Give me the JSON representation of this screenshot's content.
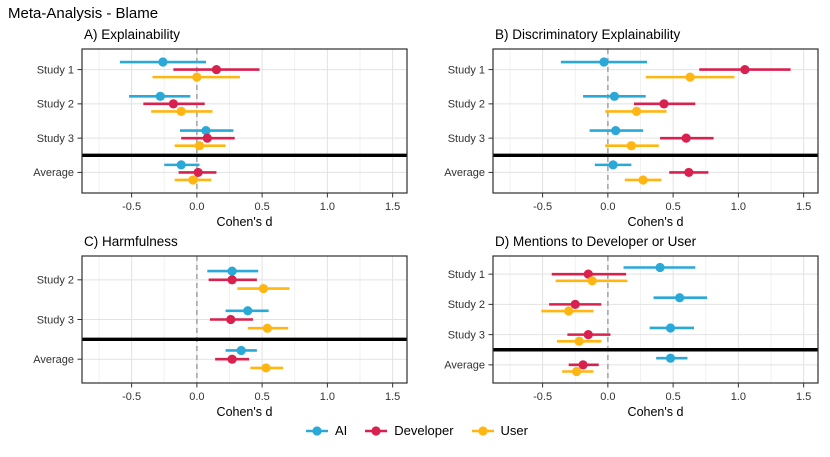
{
  "figure_title": "Meta-Analysis - Blame",
  "axis": {
    "xlabel": "Cohen's d",
    "xlim": [
      -0.88,
      1.61
    ],
    "xticks": [
      -0.5,
      0.0,
      0.5,
      1.0,
      1.5
    ],
    "xtick_labels": [
      "-0.5",
      "0.0",
      "0.5",
      "1.0",
      "1.5"
    ],
    "xminor": [
      -0.75,
      -0.25,
      0.25,
      0.75,
      1.25
    ],
    "zero_line": 0
  },
  "legend": {
    "position": "bottom",
    "items": [
      {
        "label": "AI",
        "color": "#2AA9D8"
      },
      {
        "label": "Developer",
        "color": "#D9214F"
      },
      {
        "label": "User",
        "color": "#FFB612"
      }
    ]
  },
  "style": {
    "grid_major": "#E2E2E2",
    "grid_minor": "#F1F1F1",
    "panel_border": "#2E2E2E",
    "zero_dash": "#ACACAC",
    "separator": "#000000",
    "text": "#333333"
  },
  "chart_data": [
    {
      "type": "pointrange",
      "title": "A) Explainability",
      "xlabel": "Cohen's d",
      "categories": [
        "Study 1",
        "Study 2",
        "Study 3",
        "Average"
      ],
      "separator_before": "Average",
      "series": [
        {
          "name": "AI",
          "color": "#2AA9D8",
          "points": [
            {
              "est": -0.26,
              "lo": -0.59,
              "hi": 0.07
            },
            {
              "est": -0.28,
              "lo": -0.52,
              "hi": -0.05
            },
            {
              "est": 0.07,
              "lo": -0.13,
              "hi": 0.28
            },
            {
              "est": -0.12,
              "lo": -0.25,
              "hi": 0.02
            }
          ]
        },
        {
          "name": "Developer",
          "color": "#D9214F",
          "points": [
            {
              "est": 0.15,
              "lo": -0.18,
              "hi": 0.48
            },
            {
              "est": -0.18,
              "lo": -0.41,
              "hi": 0.06
            },
            {
              "est": 0.08,
              "lo": -0.12,
              "hi": 0.29
            },
            {
              "est": 0.01,
              "lo": -0.14,
              "hi": 0.15
            }
          ]
        },
        {
          "name": "User",
          "color": "#FFB612",
          "points": [
            {
              "est": 0.0,
              "lo": -0.34,
              "hi": 0.33
            },
            {
              "est": -0.12,
              "lo": -0.35,
              "hi": 0.12
            },
            {
              "est": 0.02,
              "lo": -0.17,
              "hi": 0.22
            },
            {
              "est": -0.03,
              "lo": -0.17,
              "hi": 0.11
            }
          ]
        }
      ]
    },
    {
      "type": "pointrange",
      "title": "B) Discriminatory Explainability",
      "xlabel": "Cohen's d",
      "categories": [
        "Study 1",
        "Study 2",
        "Study 3",
        "Average"
      ],
      "separator_before": "Average",
      "series": [
        {
          "name": "AI",
          "color": "#2AA9D8",
          "points": [
            {
              "est": -0.03,
              "lo": -0.36,
              "hi": 0.3
            },
            {
              "est": 0.05,
              "lo": -0.19,
              "hi": 0.29
            },
            {
              "est": 0.06,
              "lo": -0.14,
              "hi": 0.27
            },
            {
              "est": 0.04,
              "lo": -0.1,
              "hi": 0.18
            }
          ]
        },
        {
          "name": "Developer",
          "color": "#D9214F",
          "points": [
            {
              "est": 1.05,
              "lo": 0.7,
              "hi": 1.4
            },
            {
              "est": 0.43,
              "lo": 0.2,
              "hi": 0.67
            },
            {
              "est": 0.6,
              "lo": 0.4,
              "hi": 0.81
            },
            {
              "est": 0.62,
              "lo": 0.47,
              "hi": 0.77
            }
          ]
        },
        {
          "name": "User",
          "color": "#FFB612",
          "points": [
            {
              "est": 0.63,
              "lo": 0.29,
              "hi": 0.97
            },
            {
              "est": 0.22,
              "lo": -0.02,
              "hi": 0.45
            },
            {
              "est": 0.18,
              "lo": -0.02,
              "hi": 0.39
            },
            {
              "est": 0.27,
              "lo": 0.13,
              "hi": 0.41
            }
          ]
        }
      ]
    },
    {
      "type": "pointrange",
      "title": "C) Harmfulness",
      "xlabel": "Cohen's d",
      "categories": [
        "Study 2",
        "Study 3",
        "Average"
      ],
      "separator_before": "Average",
      "series": [
        {
          "name": "AI",
          "color": "#2AA9D8",
          "points": [
            {
              "est": 0.27,
              "lo": 0.08,
              "hi": 0.47
            },
            {
              "est": 0.39,
              "lo": 0.22,
              "hi": 0.55
            },
            {
              "est": 0.34,
              "lo": 0.22,
              "hi": 0.46
            }
          ]
        },
        {
          "name": "Developer",
          "color": "#D9214F",
          "points": [
            {
              "est": 0.27,
              "lo": 0.09,
              "hi": 0.46
            },
            {
              "est": 0.26,
              "lo": 0.1,
              "hi": 0.43
            },
            {
              "est": 0.27,
              "lo": 0.14,
              "hi": 0.4
            }
          ]
        },
        {
          "name": "User",
          "color": "#FFB612",
          "points": [
            {
              "est": 0.51,
              "lo": 0.31,
              "hi": 0.71
            },
            {
              "est": 0.54,
              "lo": 0.39,
              "hi": 0.7
            },
            {
              "est": 0.53,
              "lo": 0.41,
              "hi": 0.66
            }
          ]
        }
      ]
    },
    {
      "type": "pointrange",
      "title": "D) Mentions to Developer or User",
      "xlabel": "Cohen's d",
      "categories": [
        "Study 1",
        "Study 2",
        "Study 3",
        "Average"
      ],
      "separator_before": "Average",
      "series": [
        {
          "name": "AI",
          "color": "#2AA9D8",
          "points": [
            {
              "est": 0.4,
              "lo": 0.12,
              "hi": 0.67
            },
            {
              "est": 0.55,
              "lo": 0.35,
              "hi": 0.76
            },
            {
              "est": 0.48,
              "lo": 0.32,
              "hi": 0.66
            },
            {
              "est": 0.48,
              "lo": 0.37,
              "hi": 0.61
            }
          ]
        },
        {
          "name": "Developer",
          "color": "#D9214F",
          "points": [
            {
              "est": -0.15,
              "lo": -0.43,
              "hi": 0.14
            },
            {
              "est": -0.25,
              "lo": -0.45,
              "hi": -0.05
            },
            {
              "est": -0.15,
              "lo": -0.31,
              "hi": 0.02
            },
            {
              "est": -0.19,
              "lo": -0.3,
              "hi": -0.07
            }
          ]
        },
        {
          "name": "User",
          "color": "#FFB612",
          "points": [
            {
              "est": -0.12,
              "lo": -0.4,
              "hi": 0.15
            },
            {
              "est": -0.3,
              "lo": -0.51,
              "hi": -0.11
            },
            {
              "est": -0.22,
              "lo": -0.39,
              "hi": -0.05
            },
            {
              "est": -0.24,
              "lo": -0.35,
              "hi": -0.11
            }
          ]
        }
      ]
    }
  ]
}
